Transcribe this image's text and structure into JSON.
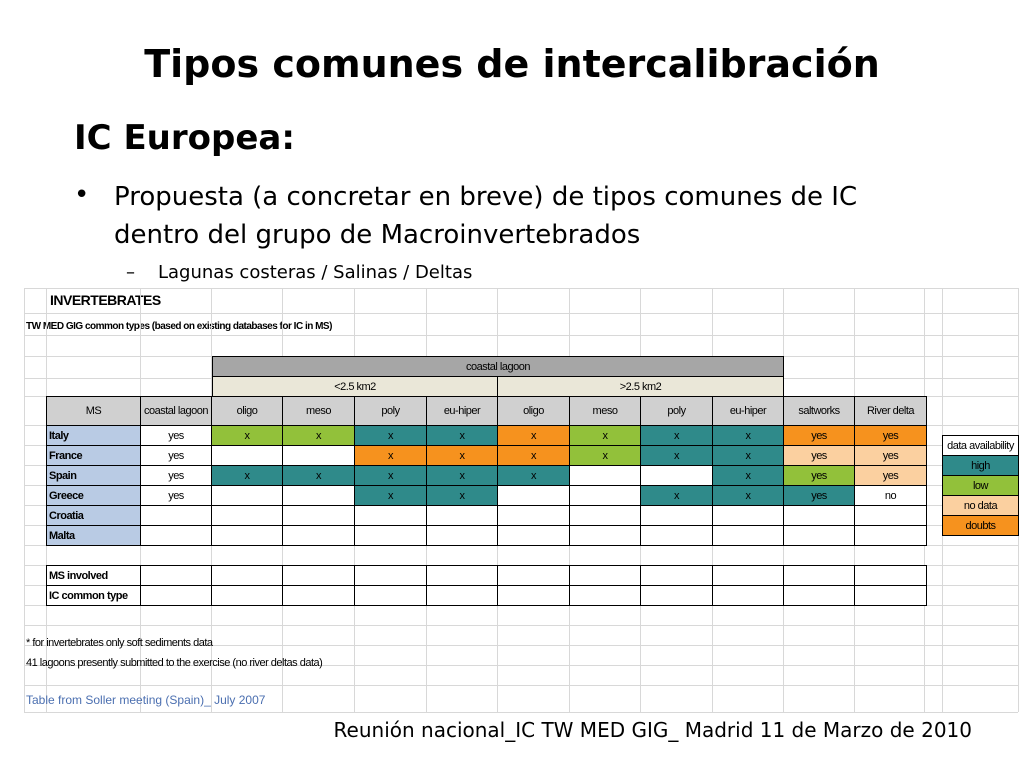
{
  "title": "Tipos comunes de intercalibración",
  "subtitle": "IC Europea:",
  "bullet": "Propuesta (a concretar en breve) de tipos comunes de IC dentro del grupo de Macroinvertebrados",
  "sub_bullet": "Lagunas costeras / Salinas / Deltas",
  "footer": "Reunión nacional_IC TW MED GIG_ Madrid 11 de Marzo de 2010",
  "colors": {
    "green": "#92c13a",
    "teal": "#2f8a8a",
    "orange": "#f6921e",
    "peach": "#fbd0a0",
    "ms_blue": "#b9cbe4"
  },
  "table": {
    "heading": "INVERTEBRATES",
    "caption": "TW MED GIG common types (based on existing databases for IC in MS)",
    "group_header": "coastal lagoon",
    "size_small": "<2.5 km2",
    "size_large": ">2.5 km2",
    "columns": [
      "MS",
      "coastal lagoon",
      "oligo",
      "meso",
      "poly",
      "eu-hiper",
      "oligo",
      "meso",
      "poly",
      "eu-hiper",
      "saltworks",
      "River delta"
    ],
    "rows": [
      {
        "ms": "Italy",
        "cells": [
          {
            "t": "yes",
            "c": "white"
          },
          {
            "t": "x",
            "c": "green"
          },
          {
            "t": "x",
            "c": "green"
          },
          {
            "t": "x",
            "c": "teal"
          },
          {
            "t": "x",
            "c": "teal"
          },
          {
            "t": "x",
            "c": "orange"
          },
          {
            "t": "x",
            "c": "green"
          },
          {
            "t": "x",
            "c": "teal"
          },
          {
            "t": "x",
            "c": "teal"
          },
          {
            "t": "yes",
            "c": "orange"
          },
          {
            "t": "yes",
            "c": "orange"
          }
        ]
      },
      {
        "ms": "France",
        "cells": [
          {
            "t": "yes",
            "c": "white"
          },
          {
            "t": "",
            "c": "white"
          },
          {
            "t": "",
            "c": "white"
          },
          {
            "t": "x",
            "c": "orange"
          },
          {
            "t": "x",
            "c": "orange"
          },
          {
            "t": "x",
            "c": "orange"
          },
          {
            "t": "x",
            "c": "green"
          },
          {
            "t": "x",
            "c": "teal"
          },
          {
            "t": "x",
            "c": "teal"
          },
          {
            "t": "yes",
            "c": "peach"
          },
          {
            "t": "yes",
            "c": "peach"
          }
        ]
      },
      {
        "ms": "Spain",
        "cells": [
          {
            "t": "yes",
            "c": "white"
          },
          {
            "t": "x",
            "c": "teal"
          },
          {
            "t": "x",
            "c": "teal"
          },
          {
            "t": "x",
            "c": "teal"
          },
          {
            "t": "x",
            "c": "teal"
          },
          {
            "t": "x",
            "c": "teal"
          },
          {
            "t": "",
            "c": "white"
          },
          {
            "t": "",
            "c": "white"
          },
          {
            "t": "x",
            "c": "teal"
          },
          {
            "t": "yes",
            "c": "green"
          },
          {
            "t": "yes",
            "c": "peach"
          }
        ]
      },
      {
        "ms": "Greece",
        "cells": [
          {
            "t": "yes",
            "c": "white"
          },
          {
            "t": "",
            "c": "white"
          },
          {
            "t": "",
            "c": "white"
          },
          {
            "t": "x",
            "c": "teal"
          },
          {
            "t": "x",
            "c": "teal"
          },
          {
            "t": "",
            "c": "white"
          },
          {
            "t": "",
            "c": "white"
          },
          {
            "t": "x",
            "c": "teal"
          },
          {
            "t": "x",
            "c": "teal"
          },
          {
            "t": "yes",
            "c": "teal"
          },
          {
            "t": "no",
            "c": "white"
          }
        ]
      },
      {
        "ms": "Croatia",
        "cells": [
          {
            "t": "",
            "c": "white"
          },
          {
            "t": "",
            "c": "white"
          },
          {
            "t": "",
            "c": "white"
          },
          {
            "t": "",
            "c": "white"
          },
          {
            "t": "",
            "c": "white"
          },
          {
            "t": "",
            "c": "white"
          },
          {
            "t": "",
            "c": "white"
          },
          {
            "t": "",
            "c": "white"
          },
          {
            "t": "",
            "c": "white"
          },
          {
            "t": "",
            "c": "white"
          },
          {
            "t": "",
            "c": "white"
          }
        ]
      },
      {
        "ms": "Malta",
        "cells": [
          {
            "t": "",
            "c": "white"
          },
          {
            "t": "",
            "c": "white"
          },
          {
            "t": "",
            "c": "white"
          },
          {
            "t": "",
            "c": "white"
          },
          {
            "t": "",
            "c": "white"
          },
          {
            "t": "",
            "c": "white"
          },
          {
            "t": "",
            "c": "white"
          },
          {
            "t": "",
            "c": "white"
          },
          {
            "t": "",
            "c": "white"
          },
          {
            "t": "",
            "c": "white"
          },
          {
            "t": "",
            "c": "white"
          }
        ]
      }
    ],
    "summary_rows": [
      "MS involved",
      "IC common type"
    ],
    "notes": [
      "* for invertebrates only soft sediments data",
      "41 lagoons presently submitted to the exercise (no river deltas data)"
    ],
    "source": "Table from Soller meeting (Spain)_ July 2007"
  },
  "legend": {
    "title": "data availability",
    "items": [
      {
        "label": "high",
        "c": "teal"
      },
      {
        "label": "low",
        "c": "green"
      },
      {
        "label": "no data",
        "c": "peach"
      },
      {
        "label": "doubts",
        "c": "orange"
      }
    ]
  }
}
